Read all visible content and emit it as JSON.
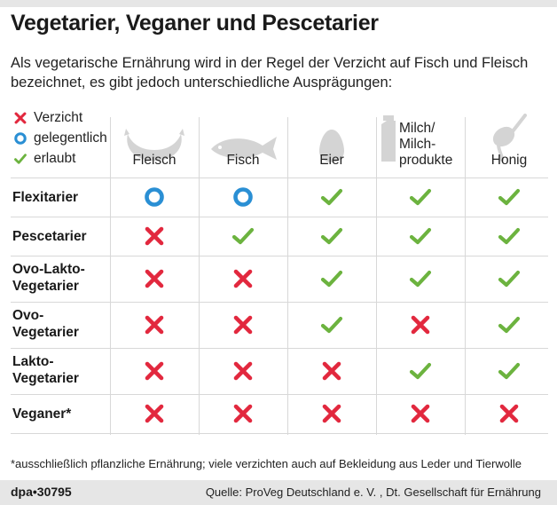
{
  "title": "Vegetarier, Veganer und Pescetarier",
  "subtitle": "Als vegetarische Ernährung wird in der Regel der Verzicht auf Fisch und Fleisch bezeichnet, es gibt jedoch unterschiedliche Ausprägungen:",
  "legend": {
    "verzicht": "Verzicht",
    "gelegentlich": "gelegentlich",
    "erlaubt": "erlaubt"
  },
  "columns": {
    "fleisch": "Fleisch",
    "fisch": "Fisch",
    "eier": "Eier",
    "milch_line1": "Milch/",
    "milch_line2": "Milch-",
    "milch_line3": "produkte",
    "honig": "Honig"
  },
  "rows": [
    {
      "label1": "Flexitarier",
      "label2": "",
      "values": [
        "gelegentlich",
        "gelegentlich",
        "erlaubt",
        "erlaubt",
        "erlaubt"
      ]
    },
    {
      "label1": "Pescetarier",
      "label2": "",
      "values": [
        "verzicht",
        "erlaubt",
        "erlaubt",
        "erlaubt",
        "erlaubt"
      ]
    },
    {
      "label1": "Ovo-Lakto-",
      "label2": "Vegetarier",
      "values": [
        "verzicht",
        "verzicht",
        "erlaubt",
        "erlaubt",
        "erlaubt"
      ]
    },
    {
      "label1": "Ovo-",
      "label2": "Vegetarier",
      "values": [
        "verzicht",
        "verzicht",
        "erlaubt",
        "verzicht",
        "erlaubt"
      ]
    },
    {
      "label1": "Lakto-",
      "label2": "Vegetarier",
      "values": [
        "verzicht",
        "verzicht",
        "verzicht",
        "erlaubt",
        "erlaubt"
      ]
    },
    {
      "label1": "Veganer*",
      "label2": "",
      "values": [
        "verzicht",
        "verzicht",
        "verzicht",
        "verzicht",
        "verzicht"
      ]
    }
  ],
  "colors": {
    "verzicht": "#e2283e",
    "gelegentlich": "#2a8fd4",
    "erlaubt": "#6cb33f",
    "icon_grey": "#d4d4d4"
  },
  "footnote": "*ausschließlich pflanzliche Ernährung; viele verzichten auch auf Bekleidung aus Leder und Tierwolle",
  "brand": "dpa•30795",
  "source": "Quelle: ProVeg Deutschland e. V. , Dt. Gesellschaft für Ernährung"
}
